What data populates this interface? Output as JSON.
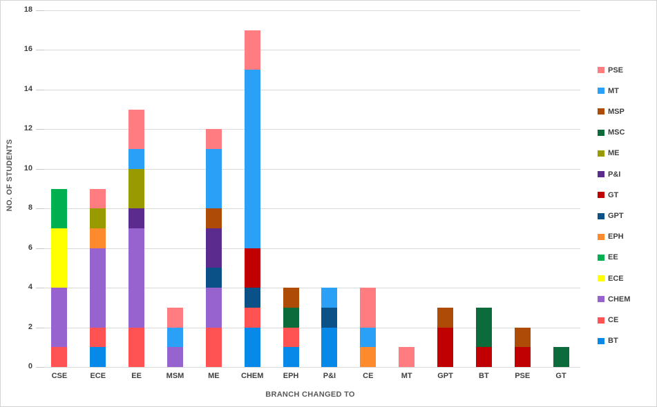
{
  "chart_data": {
    "type": "bar",
    "stacked": true,
    "title": "",
    "xlabel": "BRANCH CHANGED TO",
    "ylabel": "NO. OF STUDENTS",
    "ylim": [
      0,
      18
    ],
    "yticks": [
      0,
      2,
      4,
      6,
      8,
      10,
      12,
      14,
      16,
      18
    ],
    "grid": "horizontal",
    "legend_position": "right",
    "legend_order_top_to_bottom": [
      "PSE",
      "MT",
      "MSP",
      "MSC",
      "ME",
      "P&I",
      "GT",
      "GPT",
      "EPH",
      "EE",
      "ECE",
      "CHEM",
      "CE",
      "BT"
    ],
    "categories": [
      "CSE",
      "ECE",
      "EE",
      "MSM",
      "ME",
      "CHEM",
      "EPH",
      "P&I",
      "CE",
      "MT",
      "GPT",
      "BT",
      "PSE",
      "GT"
    ],
    "series": [
      {
        "name": "BT",
        "color": "#0689E8",
        "values": [
          0,
          1,
          0,
          0,
          0,
          2,
          1,
          2,
          0,
          0,
          0,
          0,
          0,
          0
        ]
      },
      {
        "name": "CE",
        "color": "#FF5252",
        "values": [
          1,
          1,
          2,
          0,
          2,
          1,
          1,
          0,
          0,
          0,
          0,
          0,
          0,
          0
        ]
      },
      {
        "name": "CHEM",
        "color": "#9763CE",
        "values": [
          3,
          4,
          5,
          1,
          2,
          0,
          0,
          0,
          0,
          0,
          0,
          0,
          0,
          0
        ]
      },
      {
        "name": "ECE",
        "color": "#FFFF00",
        "values": [
          3,
          0,
          0,
          0,
          0,
          0,
          0,
          0,
          0,
          0,
          0,
          0,
          0,
          0
        ]
      },
      {
        "name": "EE",
        "color": "#00B050",
        "values": [
          2,
          0,
          0,
          0,
          0,
          0,
          0,
          0,
          0,
          0,
          0,
          0,
          0,
          0
        ]
      },
      {
        "name": "EPH",
        "color": "#FD8A2D",
        "values": [
          0,
          1,
          0,
          0,
          0,
          0,
          0,
          0,
          1,
          0,
          0,
          0,
          0,
          0
        ]
      },
      {
        "name": "GPT",
        "color": "#0A5188",
        "values": [
          0,
          0,
          0,
          0,
          1,
          1,
          0,
          1,
          0,
          0,
          0,
          0,
          0,
          0
        ]
      },
      {
        "name": "GT",
        "color": "#C00000",
        "values": [
          0,
          0,
          0,
          0,
          0,
          2,
          0,
          0,
          0,
          0,
          2,
          1,
          1,
          0
        ]
      },
      {
        "name": "P&I",
        "color": "#5B2B8D",
        "values": [
          0,
          0,
          1,
          0,
          2,
          0,
          0,
          0,
          0,
          0,
          0,
          0,
          0,
          0
        ]
      },
      {
        "name": "ME",
        "color": "#999A00",
        "values": [
          0,
          1,
          2,
          0,
          0,
          0,
          0,
          0,
          0,
          0,
          0,
          0,
          0,
          0
        ]
      },
      {
        "name": "MSC",
        "color": "#0B6B3A",
        "values": [
          0,
          0,
          0,
          0,
          0,
          0,
          1,
          0,
          0,
          0,
          0,
          2,
          0,
          1
        ]
      },
      {
        "name": "MSP",
        "color": "#AE4B06",
        "values": [
          0,
          0,
          0,
          0,
          1,
          0,
          1,
          0,
          0,
          0,
          1,
          0,
          1,
          0
        ]
      },
      {
        "name": "MT",
        "color": "#2BA0F7",
        "values": [
          0,
          0,
          1,
          1,
          3,
          9,
          0,
          1,
          1,
          0,
          0,
          0,
          0,
          0
        ]
      },
      {
        "name": "PSE",
        "color": "#FF7C80",
        "values": [
          0,
          1,
          2,
          1,
          1,
          2,
          0,
          0,
          2,
          1,
          0,
          0,
          0,
          0
        ]
      }
    ],
    "category_totals": [
      9,
      9,
      13,
      3,
      12,
      17,
      4,
      4,
      4,
      1,
      3,
      3,
      2,
      1
    ]
  },
  "colors": {
    "gridline": "#D9D9D9",
    "tick_text": "#404040",
    "axis_title_text": "#595959",
    "canvas_border": "#D3D3D3",
    "background": "#FFFFFF"
  }
}
